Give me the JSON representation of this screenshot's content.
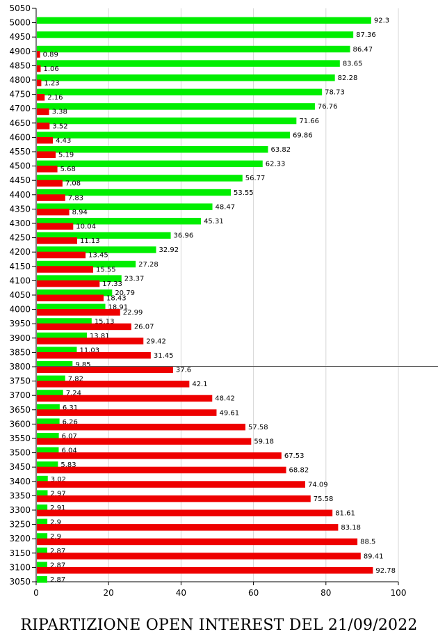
{
  "chart_data": {
    "type": "bar",
    "orientation": "horizontal",
    "title": "RIPARTIZIONE OPEN INTEREST DEL 21/09/2022",
    "xlim": [
      0,
      100
    ],
    "x_ticks": [
      0,
      20,
      40,
      60,
      80,
      100
    ],
    "y_ticks": [
      "5050",
      "5000",
      "4950",
      "4900",
      "4850",
      "4800",
      "4750",
      "4700",
      "4650",
      "4600",
      "4550",
      "4500",
      "4450",
      "4400",
      "4350",
      "4300",
      "4250",
      "4200",
      "4150",
      "4100",
      "4050",
      "4000",
      "3950",
      "3900",
      "3850",
      "3800",
      "3750",
      "3700",
      "3650",
      "3600",
      "3550",
      "3500",
      "3450",
      "3400",
      "3350",
      "3300",
      "3250",
      "3200",
      "3150",
      "3100",
      "3050"
    ],
    "grid_vertical": true,
    "reference_line": "3800",
    "series": [
      {
        "color": "#00ee00",
        "values": {
          "5000": 92.3,
          "4950": 87.36,
          "4900": 86.47,
          "4850": 83.65,
          "4800": 82.28,
          "4750": 78.73,
          "4700": 76.76,
          "4650": 71.66,
          "4600": 69.86,
          "4550": 63.82,
          "4500": 62.33,
          "4450": 56.77,
          "4400": 53.55,
          "4350": 48.47,
          "4300": 45.31,
          "4250": 36.96,
          "4200": 32.92,
          "4150": 27.28,
          "4100": 23.37,
          "4050": 20.79,
          "4000": 18.91,
          "3950": 15.13,
          "3900": 13.81,
          "3850": 11.03,
          "3800": 9.85,
          "3750": 7.82,
          "3700": 7.24,
          "3650": 6.31,
          "3600": 6.26,
          "3550": 6.07,
          "3500": 6.04,
          "3450": 5.83,
          "3400": 3.02,
          "3350": 2.97,
          "3300": 2.91,
          "3250": 2.9,
          "3200": 2.9,
          "3150": 2.87,
          "3100": 2.87,
          "3050": 2.87
        }
      },
      {
        "color": "#ee0000",
        "values": {
          "4900": 0.89,
          "4850": 1.06,
          "4800": 1.23,
          "4750": 2.16,
          "4700": 3.38,
          "4650": 3.52,
          "4600": 4.43,
          "4550": 5.19,
          "4500": 5.68,
          "4450": 7.08,
          "4400": 7.83,
          "4350": 8.94,
          "4300": 10.04,
          "4250": 11.13,
          "4200": 13.45,
          "4150": 15.55,
          "4100": 17.33,
          "4050": 18.43,
          "4000": 22.99,
          "3950": 26.07,
          "3900": 29.42,
          "3850": 31.45,
          "3800": 37.6,
          "3750": 42.1,
          "3700": 48.42,
          "3650": 49.61,
          "3600": 57.58,
          "3550": 59.18,
          "3500": 67.53,
          "3450": 68.82,
          "3400": 74.09,
          "3350": 75.58,
          "3300": 81.61,
          "3250": 83.18,
          "3200": 88.5,
          "3150": 89.41,
          "3100": 92.78
        }
      }
    ]
  }
}
